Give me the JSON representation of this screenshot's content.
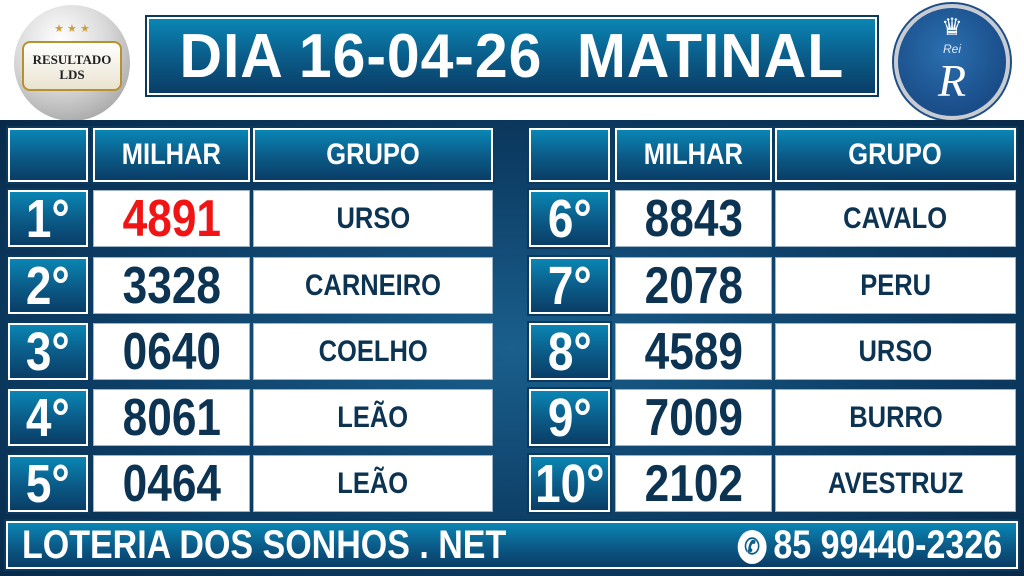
{
  "header": {
    "title": "DIA 16-04-26  MATINAL",
    "logo_left_text": [
      "RESULTADO",
      "LDS"
    ],
    "logo_left_stars": "★ ★ ★",
    "logo_right_text": "Rei",
    "logo_right_letter": "R"
  },
  "table": {
    "col_milhar": "MILHAR",
    "col_grupo": "GRUPO",
    "left": [
      {
        "rank": "1°",
        "milhar": "4891",
        "grupo": "URSO",
        "highlight": true
      },
      {
        "rank": "2°",
        "milhar": "3328",
        "grupo": "CARNEIRO"
      },
      {
        "rank": "3°",
        "milhar": "0640",
        "grupo": "COELHO"
      },
      {
        "rank": "4°",
        "milhar": "8061",
        "grupo": "LEÃO"
      },
      {
        "rank": "5°",
        "milhar": "0464",
        "grupo": "LEÃO"
      }
    ],
    "right": [
      {
        "rank": "6°",
        "milhar": "8843",
        "grupo": "CAVALO"
      },
      {
        "rank": "7°",
        "milhar": "2078",
        "grupo": "PERU"
      },
      {
        "rank": "8°",
        "milhar": "4589",
        "grupo": "URSO"
      },
      {
        "rank": "9°",
        "milhar": "7009",
        "grupo": "BURRO"
      },
      {
        "rank": "10°",
        "milhar": "2102",
        "grupo": "AVESTRUZ"
      }
    ]
  },
  "footer": {
    "site": "LOTERIA DOS SONHOS . NET",
    "phone": "85 99440-2326",
    "phone_icon": "whatsapp-icon"
  },
  "colors": {
    "highlight": "#f01414",
    "text_dark": "#0c3352",
    "panel": "#0d3e66"
  }
}
